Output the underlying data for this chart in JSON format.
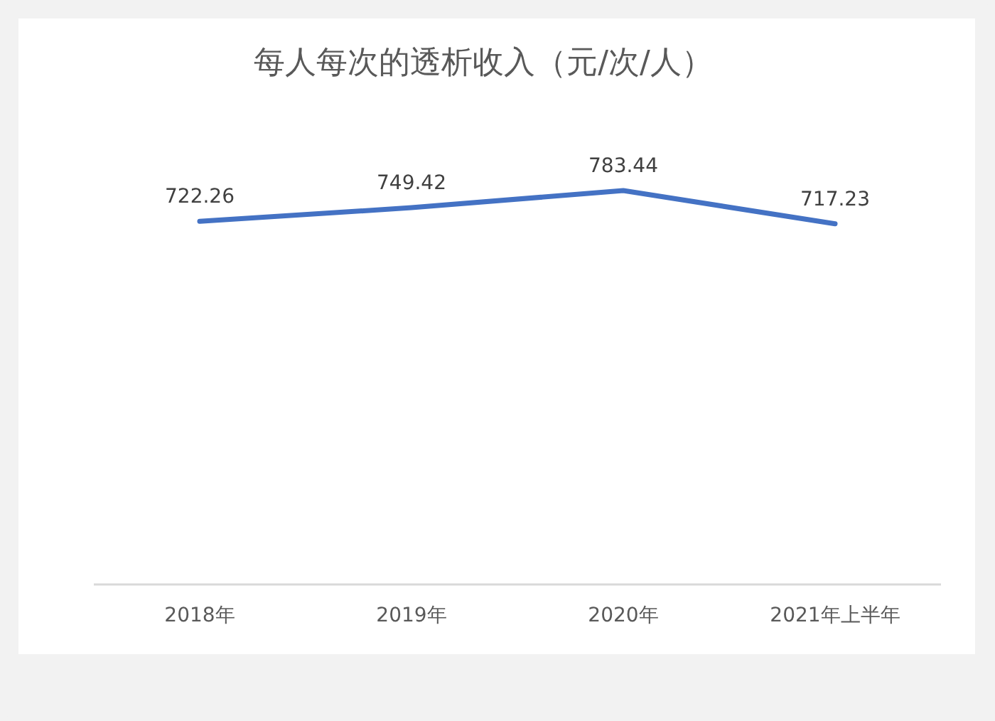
{
  "chart_data": {
    "type": "line",
    "title": "每人每次的透析收入（元/次/人）",
    "categories": [
      "2018年",
      "2019年",
      "2020年",
      "2021年上半年"
    ],
    "series": [
      {
        "color": "#4472c4",
        "values": [
          722.26,
          749.42,
          783.44,
          717.23
        ]
      }
    ],
    "tick_labels": "x",
    "data_labels": true,
    "marker": "none",
    "line_style": "solid"
  }
}
